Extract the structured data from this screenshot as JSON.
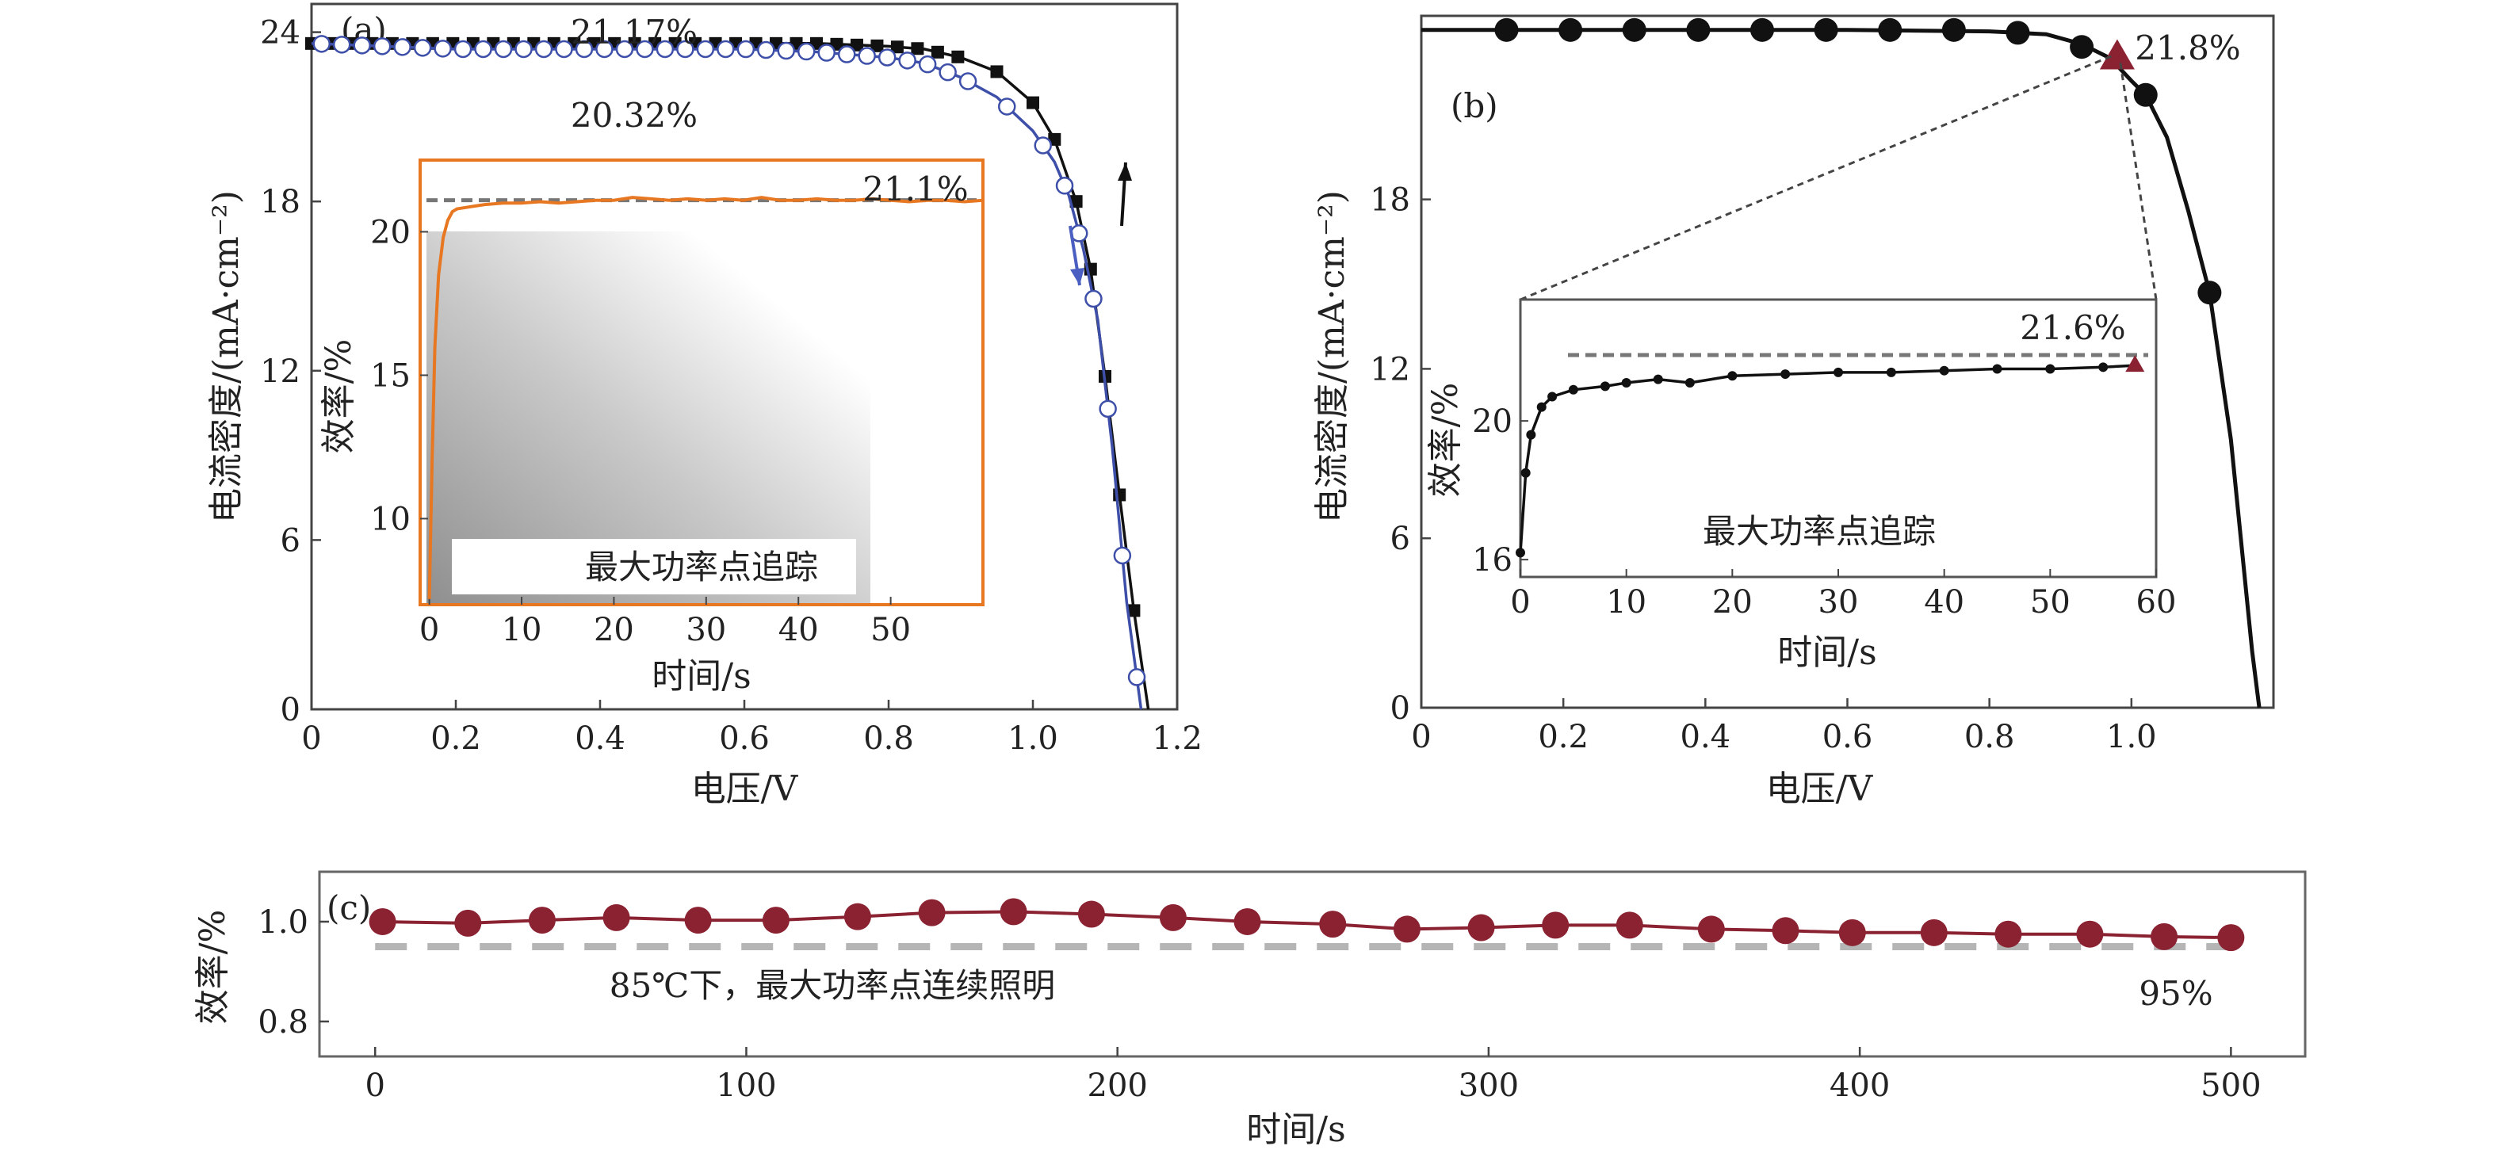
{
  "chart_data": [
    {
      "type": "line",
      "panel_label": "(a)",
      "xlabel": "电压/V",
      "ylabel": "电流密度/(mA·cm⁻²)",
      "xlim": [
        0,
        1.2
      ],
      "ylim": [
        0,
        25
      ],
      "xticks": [
        "0",
        "0.2",
        "0.4",
        "0.6",
        "0.8",
        "1.0",
        "1.2"
      ],
      "yticks": [
        "0",
        "6",
        "12",
        "18",
        "24"
      ],
      "annotations": [
        "21.17%",
        "20.32%"
      ],
      "colors": {
        "forward": "#111111",
        "reverse": "#3d4fa8"
      },
      "series": [
        {
          "marker": "filled-square",
          "x": [
            0,
            0.1,
            0.2,
            0.3,
            0.4,
            0.5,
            0.6,
            0.7,
            0.8,
            0.85,
            0.9,
            0.95,
            1.0,
            1.03,
            1.06,
            1.08,
            1.1,
            1.12,
            1.14,
            1.16
          ],
          "y": [
            23.6,
            23.6,
            23.6,
            23.6,
            23.6,
            23.6,
            23.6,
            23.6,
            23.5,
            23.4,
            23.1,
            22.6,
            21.5,
            20.2,
            18.0,
            15.6,
            11.8,
            7.6,
            3.5,
            0
          ]
        },
        {
          "marker": "open-circle",
          "x": [
            0,
            0.1,
            0.2,
            0.3,
            0.4,
            0.5,
            0.6,
            0.7,
            0.8,
            0.85,
            0.9,
            0.95,
            1.0,
            1.03,
            1.05,
            1.07,
            1.09,
            1.11,
            1.13,
            1.15
          ],
          "y": [
            23.6,
            23.5,
            23.4,
            23.4,
            23.4,
            23.4,
            23.4,
            23.3,
            23.1,
            22.9,
            22.4,
            21.7,
            20.5,
            19.4,
            18.2,
            16.3,
            13.8,
            9.3,
            3.8,
            0
          ]
        }
      ],
      "inset": {
        "type": "line",
        "xlabel": "时间/s",
        "ylabel": "效率/%",
        "xlim": [
          -1,
          60
        ],
        "ylim": [
          7,
          22.5
        ],
        "xticks": [
          "0",
          "10",
          "20",
          "30",
          "40",
          "50"
        ],
        "yticks": [
          "10",
          "15",
          "20"
        ],
        "annotation": "21.1%",
        "legend": "最大功率点追踪",
        "reference_value": 21.1,
        "color": "#e87722",
        "x": [
          0,
          0.3,
          0.6,
          1.0,
          1.5,
          2.0,
          2.5,
          3,
          4,
          5,
          6,
          8,
          10,
          12,
          14,
          16,
          18,
          20,
          22,
          24,
          26,
          28,
          30,
          32,
          34,
          36,
          38,
          40,
          42,
          44,
          46,
          48,
          50,
          52,
          54,
          56,
          58,
          60
        ],
        "y": [
          7.2,
          12,
          16,
          18.5,
          19.8,
          20.4,
          20.7,
          20.8,
          20.85,
          20.9,
          20.95,
          21.0,
          21.0,
          21.05,
          21.0,
          21.05,
          21.1,
          21.1,
          21.2,
          21.15,
          21.1,
          21.15,
          21.1,
          21.15,
          21.1,
          21.2,
          21.1,
          21.1,
          21.15,
          21.1,
          21.1,
          21.15,
          21.1,
          21.05,
          21.1,
          21.1,
          21.05,
          21.1
        ]
      }
    },
    {
      "type": "line",
      "panel_label": "(b)",
      "xlabel": "电压/V",
      "ylabel": "电流密度/(mA·cm⁻²)",
      "xlim": [
        0,
        1.2
      ],
      "ylim": [
        0,
        24.5
      ],
      "xticks": [
        "0",
        "0.2",
        "0.4",
        "0.6",
        "0.8",
        "1.0"
      ],
      "yticks": [
        "0",
        "6",
        "12",
        "18"
      ],
      "annotation": "21.8%",
      "mpp": {
        "x": 0.98,
        "y": 23.0,
        "color": "#8b2232"
      },
      "series": [
        {
          "marker": "filled-circle",
          "x": [
            0.12,
            0.21,
            0.3,
            0.39,
            0.48,
            0.57,
            0.66,
            0.75,
            0.84,
            0.93,
            1.02,
            1.11
          ],
          "y": [
            24.0,
            24.0,
            24.0,
            24.0,
            24.0,
            24.0,
            24.0,
            24.0,
            23.9,
            23.4,
            21.7,
            14.7
          ]
        }
      ],
      "curve": {
        "x": [
          0,
          0.3,
          0.6,
          0.8,
          0.88,
          0.93,
          0.97,
          1.0,
          1.02,
          1.05,
          1.08,
          1.11,
          1.14,
          1.17,
          1.18
        ],
        "y": [
          24.0,
          24.0,
          24.0,
          23.95,
          23.85,
          23.5,
          23.0,
          22.2,
          21.7,
          20.2,
          17.6,
          14.7,
          9.5,
          2.0,
          0
        ]
      },
      "inset": {
        "type": "line",
        "xlabel": "时间/s",
        "ylabel": "效率/%",
        "xlim": [
          0,
          60
        ],
        "ylim": [
          15.5,
          23.5
        ],
        "xticks": [
          "0",
          "10",
          "20",
          "30",
          "40",
          "50",
          "60"
        ],
        "yticks": [
          "16",
          "20"
        ],
        "annotation": "21.6%",
        "legend": "最大功率点追踪",
        "reference_value": 21.6,
        "x": [
          0,
          0.5,
          1,
          2,
          3,
          5,
          8,
          10,
          13,
          16,
          20,
          25,
          30,
          35,
          40,
          45,
          50,
          55,
          58
        ],
        "y": [
          16.2,
          18.5,
          19.6,
          20.4,
          20.7,
          20.9,
          21.0,
          21.1,
          21.2,
          21.1,
          21.3,
          21.35,
          21.4,
          21.4,
          21.45,
          21.5,
          21.5,
          21.55,
          21.6
        ]
      }
    },
    {
      "type": "line",
      "panel_label": "(c)",
      "xlabel": "时间/s",
      "ylabel": "效率/%",
      "xlim": [
        -15,
        520
      ],
      "ylim": [
        0.73,
        1.1
      ],
      "xticks": [
        "0",
        "100",
        "200",
        "300",
        "400",
        "500"
      ],
      "yticks": [
        "0.8",
        "1.0"
      ],
      "annotations": [
        "85℃下，最大功率点连续照明",
        "95%"
      ],
      "reference_value": 0.95,
      "color": "#8b2232",
      "series": [
        {
          "marker": "filled-circle",
          "x": [
            2,
            25,
            45,
            65,
            87,
            108,
            130,
            150,
            172,
            193,
            215,
            235,
            258,
            278,
            298,
            318,
            338,
            360,
            380,
            398,
            420,
            440,
            462,
            482,
            500
          ],
          "y": [
            1.0,
            0.997,
            1.003,
            1.008,
            1.003,
            1.003,
            1.01,
            1.018,
            1.02,
            1.015,
            1.008,
            1.0,
            0.995,
            0.985,
            0.988,
            0.993,
            0.993,
            0.985,
            0.982,
            0.978,
            0.978,
            0.975,
            0.975,
            0.97,
            0.968
          ]
        }
      ]
    }
  ]
}
